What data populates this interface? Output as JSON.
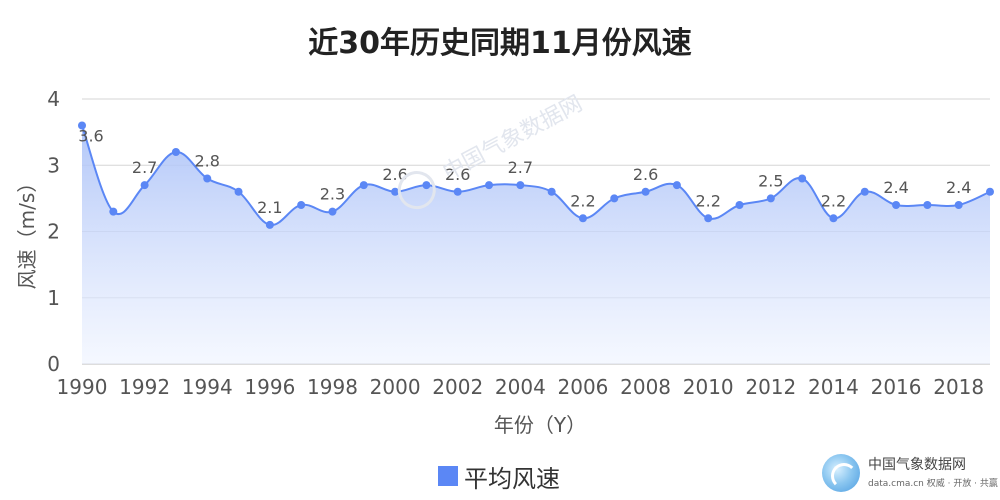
{
  "chart_data": {
    "type": "area",
    "title": "近30年历史同期11月份风速",
    "xlabel": "年份（Y）",
    "ylabel": "风速（m/s）",
    "ylim": [
      0,
      4
    ],
    "y_ticks": [
      0,
      1,
      2,
      3,
      4
    ],
    "xlim": [
      1990,
      2019
    ],
    "x_ticks": [
      1990,
      1992,
      1994,
      1996,
      1998,
      2000,
      2002,
      2004,
      2006,
      2008,
      2010,
      2012,
      2014,
      2016,
      2018
    ],
    "grid": true,
    "legend_position": "bottom",
    "series": [
      {
        "name": "平均风速",
        "color": "#5b87f5",
        "x": [
          1990,
          1991,
          1992,
          1993,
          1994,
          1995,
          1996,
          1997,
          1998,
          1999,
          2000,
          2001,
          2002,
          2003,
          2004,
          2005,
          2006,
          2007,
          2008,
          2009,
          2010,
          2011,
          2012,
          2013,
          2014,
          2015,
          2016,
          2017,
          2018,
          2019
        ],
        "values": [
          3.6,
          2.3,
          2.7,
          3.2,
          2.8,
          2.6,
          2.1,
          2.4,
          2.3,
          2.7,
          2.6,
          2.7,
          2.6,
          2.7,
          2.7,
          2.6,
          2.2,
          2.5,
          2.6,
          2.7,
          2.2,
          2.4,
          2.5,
          2.8,
          2.2,
          2.6,
          2.4,
          2.4,
          2.4,
          2.6
        ],
        "labeled_points": [
          0,
          2,
          4,
          6,
          8,
          10,
          12,
          14,
          16,
          18,
          20,
          22,
          24,
          26,
          28
        ]
      }
    ]
  },
  "watermark": {
    "text": "中国气象数据网"
  },
  "brand": {
    "name": "中国气象数据网",
    "sub": "data.cma.cn 权威 · 开放 · 共赢"
  }
}
